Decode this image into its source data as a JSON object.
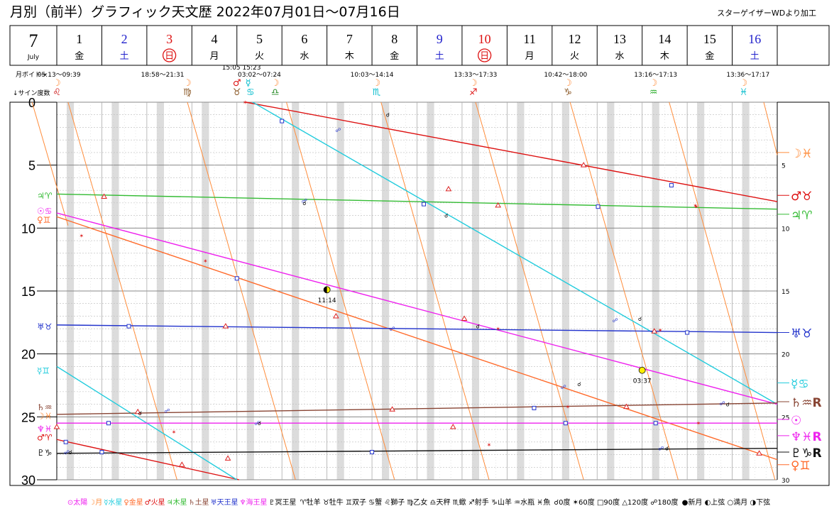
{
  "title": "月別（前半）グラフィック天文歴  2022年07月01日～07月16日",
  "credit": "スターゲイザーWDより加工",
  "month": {
    "number": "7",
    "name": "July"
  },
  "days": [
    {
      "d": "1",
      "w": "金",
      "c": "#000000",
      "circle": false
    },
    {
      "d": "2",
      "w": "土",
      "c": "#2222cc",
      "circle": false
    },
    {
      "d": "3",
      "w": "日",
      "c": "#dd1111",
      "circle": true
    },
    {
      "d": "4",
      "w": "月",
      "c": "#000000",
      "circle": false
    },
    {
      "d": "5",
      "w": "火",
      "c": "#000000",
      "circle": false
    },
    {
      "d": "6",
      "w": "水",
      "c": "#000000",
      "circle": false
    },
    {
      "d": "7",
      "w": "木",
      "c": "#000000",
      "circle": false
    },
    {
      "d": "8",
      "w": "金",
      "c": "#000000",
      "circle": false
    },
    {
      "d": "9",
      "w": "土",
      "c": "#2222cc",
      "circle": false
    },
    {
      "d": "10",
      "w": "日",
      "c": "#dd1111",
      "circle": true
    },
    {
      "d": "11",
      "w": "月",
      "c": "#000000",
      "circle": false
    },
    {
      "d": "12",
      "w": "火",
      "c": "#000000",
      "circle": false
    },
    {
      "d": "13",
      "w": "水",
      "c": "#000000",
      "circle": false
    },
    {
      "d": "14",
      "w": "木",
      "c": "#000000",
      "circle": false
    },
    {
      "d": "15",
      "w": "金",
      "c": "#000000",
      "circle": false
    },
    {
      "d": "16",
      "w": "土",
      "c": "#2222cc",
      "circle": false
    }
  ],
  "void_label": "月ボイド→",
  "sign_degree_label": "↓サイン度数",
  "voids": [
    {
      "text": "05:13～09:39",
      "day": 1.05
    },
    {
      "text": "18:58～21:31",
      "day": 3.35
    },
    {
      "text": "15:05  15:23",
      "day": 5.1,
      "row": 0
    },
    {
      "text": "03:02～07:24",
      "day": 5.5
    },
    {
      "text": "10:03～14:14",
      "day": 8.0
    },
    {
      "text": "13:33～17:33",
      "day": 10.3
    },
    {
      "text": "10:42～18:00",
      "day": 12.3
    },
    {
      "text": "13:16～17:13",
      "day": 14.3
    },
    {
      "text": "13:36～17:17",
      "day": 16.35
    }
  ],
  "ingress_glyphs": [
    {
      "g": "☽",
      "day": 1.0,
      "c": "#ff8c3a"
    },
    {
      "g": "♌",
      "day": 1.0,
      "c": "#cc1111",
      "row": 1
    },
    {
      "g": "☽",
      "day": 3.9,
      "c": "#ff8c3a"
    },
    {
      "g": "♍",
      "day": 3.9,
      "c": "#885522",
      "row": 1
    },
    {
      "g": "♂",
      "day": 5.0,
      "c": "#dd1111"
    },
    {
      "g": "☿",
      "day": 5.25,
      "c": "#00bbcc"
    },
    {
      "g": "♉",
      "day": 5.0,
      "c": "#885522",
      "row": 1
    },
    {
      "g": "♋",
      "day": 5.3,
      "c": "#00bbcc",
      "row": 1
    },
    {
      "g": "☽",
      "day": 5.85,
      "c": "#ff8c3a"
    },
    {
      "g": "♎",
      "day": 5.85,
      "c": "#228822",
      "row": 1
    },
    {
      "g": "☽",
      "day": 8.1,
      "c": "#ff8c3a"
    },
    {
      "g": "♏",
      "day": 8.1,
      "c": "#00bbcc",
      "row": 1
    },
    {
      "g": "☽",
      "day": 10.25,
      "c": "#ff8c3a"
    },
    {
      "g": "♐",
      "day": 10.25,
      "c": "#dd1111",
      "row": 1
    },
    {
      "g": "☽",
      "day": 12.35,
      "c": "#ff8c3a"
    },
    {
      "g": "♑",
      "day": 12.35,
      "c": "#885522",
      "row": 1
    },
    {
      "g": "☽",
      "day": 14.25,
      "c": "#ff8c3a"
    },
    {
      "g": "♒",
      "day": 14.25,
      "c": "#22aa22",
      "row": 1
    },
    {
      "g": "☽",
      "day": 16.25,
      "c": "#ff8c3a"
    },
    {
      "g": "♓",
      "day": 16.25,
      "c": "#00bbcc",
      "row": 1
    }
  ],
  "chart_data": {
    "type": "line",
    "x_axis": {
      "range": [
        1,
        17
      ],
      "unit": "day of July 2022"
    },
    "y_axis": {
      "range": [
        0,
        30
      ],
      "unit": "degree within sign",
      "ticks": [
        "0",
        "5",
        "10",
        "15",
        "20",
        "25",
        "30"
      ]
    },
    "series": [
      {
        "name": "☽",
        "color": "#ff8c3a",
        "lines": [
          [
            [
              1.25,
              0
            ],
            [
              3.67,
              30
            ]
          ],
          [
            [
              0.45,
              0
            ],
            [
              1.25,
              9.8
            ]
          ],
          [
            [
              3.9,
              0
            ],
            [
              6.3,
              30
            ]
          ],
          [
            [
              6.1,
              0
            ],
            [
              8.5,
              30
            ]
          ],
          [
            [
              8.2,
              0
            ],
            [
              10.6,
              30
            ]
          ],
          [
            [
              10.3,
              0
            ],
            [
              12.7,
              30
            ]
          ],
          [
            [
              12.4,
              0
            ],
            [
              14.8,
              30
            ]
          ],
          [
            [
              14.6,
              0
            ],
            [
              16.95,
              30
            ]
          ],
          [
            [
              16.7,
              0
            ],
            [
              17.0,
              4.2
            ]
          ]
        ]
      },
      {
        "name": "♂ ♉",
        "color": "#dd1111",
        "lines": [
          [
            [
              5.2,
              0
            ],
            [
              17.0,
              7.9
            ]
          ],
          [
            [
              1.0,
              26.8
            ],
            [
              5.05,
              30
            ]
          ]
        ]
      },
      {
        "name": "☿ ♋",
        "color": "#22ccdd",
        "lines": [
          [
            [
              5.35,
              0
            ],
            [
              17.0,
              24.0
            ]
          ],
          [
            [
              1.0,
              21.0
            ],
            [
              5.0,
              30
            ]
          ]
        ]
      },
      {
        "name": "♀ ♊",
        "color": "#ff6a2a",
        "lines": [
          [
            [
              1.0,
              9.1
            ],
            [
              17.0,
              28.4
            ]
          ]
        ]
      },
      {
        "name": "☉ ♋",
        "color": "#ee22ee",
        "lines": [
          [
            [
              1.0,
              8.8
            ],
            [
              17.0,
              24.0
            ]
          ]
        ]
      },
      {
        "name": "♃ ♈",
        "color": "#33bb33",
        "lines": [
          [
            [
              1.0,
              7.3
            ],
            [
              17.0,
              8.5
            ]
          ]
        ]
      },
      {
        "name": "♅ ♉",
        "color": "#2233cc",
        "lines": [
          [
            [
              1.0,
              17.7
            ],
            [
              17.0,
              18.3
            ]
          ]
        ]
      },
      {
        "name": "♄ ♒",
        "color": "#884433",
        "lines": [
          [
            [
              1.0,
              24.8
            ],
            [
              17.0,
              23.9
            ]
          ]
        ]
      },
      {
        "name": "♆ ♓",
        "color": "#ee22ee",
        "lines": [
          [
            [
              1.0,
              25.5
            ],
            [
              17.0,
              25.5
            ]
          ]
        ]
      },
      {
        "name": "♇ ♑",
        "color": "#111111",
        "lines": [
          [
            [
              1.0,
              27.9
            ],
            [
              17.0,
              27.5
            ]
          ]
        ]
      }
    ],
    "aspects": [
      {
        "t": "opp",
        "day": 7.25,
        "deg": 2.2
      },
      {
        "t": "opp",
        "day": 6.5,
        "deg": 7.8
      },
      {
        "t": "opp",
        "day": 3.45,
        "deg": 24.5
      },
      {
        "t": "opp",
        "day": 5.45,
        "deg": 25.5
      },
      {
        "t": "opp",
        "day": 1.22,
        "deg": 27.8
      },
      {
        "t": "opp",
        "day": 13.4,
        "deg": 17.3
      },
      {
        "t": "opp",
        "day": 8.45,
        "deg": 18.0
      },
      {
        "t": "opp",
        "day": 12.25,
        "deg": 22.6
      },
      {
        "t": "opp",
        "day": 15.78,
        "deg": 23.9
      },
      {
        "t": "opp",
        "day": 14.42,
        "deg": 27.5
      },
      {
        "t": "sq",
        "day": 6.0,
        "deg": 1.5
      },
      {
        "t": "sq",
        "day": 9.15,
        "deg": 8.1
      },
      {
        "t": "sq",
        "day": 14.65,
        "deg": 6.6
      },
      {
        "t": "sq",
        "day": 13.02,
        "deg": 8.3
      },
      {
        "t": "sq",
        "day": 5.0,
        "deg": 14.0
      },
      {
        "t": "sq",
        "day": 2.6,
        "deg": 17.8
      },
      {
        "t": "sq",
        "day": 15.0,
        "deg": 18.3
      },
      {
        "t": "sq",
        "day": 1.2,
        "deg": 27.0
      },
      {
        "t": "sq",
        "day": 2.15,
        "deg": 25.5
      },
      {
        "t": "sq",
        "day": 2.0,
        "deg": 27.8
      },
      {
        "t": "sq",
        "day": 8.0,
        "deg": 27.8
      },
      {
        "t": "sq",
        "day": 14.3,
        "deg": 25.5
      },
      {
        "t": "sq",
        "day": 11.6,
        "deg": 24.3
      },
      {
        "t": "sq",
        "day": 12.3,
        "deg": 25.5
      },
      {
        "t": "tri",
        "day": 2.05,
        "deg": 7.5
      },
      {
        "t": "tri",
        "day": 9.7,
        "deg": 6.9
      },
      {
        "t": "tri",
        "day": 12.7,
        "deg": 5.0
      },
      {
        "t": "tri",
        "day": 10.8,
        "deg": 8.2
      },
      {
        "t": "tri",
        "day": 7.2,
        "deg": 17.0
      },
      {
        "t": "tri",
        "day": 4.75,
        "deg": 17.8
      },
      {
        "t": "tri",
        "day": 8.45,
        "deg": 24.4
      },
      {
        "t": "tri",
        "day": 10.05,
        "deg": 17.2
      },
      {
        "t": "tri",
        "day": 14.27,
        "deg": 18.2
      },
      {
        "t": "tri",
        "day": 2.8,
        "deg": 24.6
      },
      {
        "t": "tri",
        "day": 13.65,
        "deg": 24.2
      },
      {
        "t": "tri",
        "day": 4.8,
        "deg": 28.3
      },
      {
        "t": "tri",
        "day": 9.8,
        "deg": 25.8
      },
      {
        "t": "tri",
        "day": 3.78,
        "deg": 28.8
      },
      {
        "t": "tri",
        "day": 16.6,
        "deg": 27.9
      },
      {
        "t": "tri",
        "day": 1.0,
        "deg": 25.8
      },
      {
        "t": "sx",
        "day": 5.18,
        "deg": 0
      },
      {
        "t": "sx",
        "day": 1.55,
        "deg": 10.6
      },
      {
        "t": "sx",
        "day": 4.3,
        "deg": 12.6
      },
      {
        "t": "sx",
        "day": 15.2,
        "deg": 8.3
      },
      {
        "t": "sx",
        "day": 10.8,
        "deg": 18.0
      },
      {
        "t": "sx",
        "day": 14.4,
        "deg": 18.1
      },
      {
        "t": "sx",
        "day": 3.6,
        "deg": 26.2
      },
      {
        "t": "sx",
        "day": 10.6,
        "deg": 27.2
      },
      {
        "t": "sx",
        "day": 12.35,
        "deg": 24.2
      },
      {
        "t": "sx",
        "day": 15.18,
        "deg": 8.2
      },
      {
        "t": "sx",
        "day": 15.25,
        "deg": 25.5
      },
      {
        "t": "cj",
        "day": 9.65,
        "deg": 9.0
      },
      {
        "t": "cj",
        "day": 8.35,
        "deg": 1.0
      },
      {
        "t": "cj",
        "day": 6.5,
        "deg": 8.0
      },
      {
        "t": "cj",
        "day": 2.85,
        "deg": 24.7
      },
      {
        "t": "cj",
        "day": 5.5,
        "deg": 25.5
      },
      {
        "t": "cj",
        "day": 1.3,
        "deg": 27.8
      },
      {
        "t": "cj",
        "day": 10.35,
        "deg": 17.8
      },
      {
        "t": "cj",
        "day": 13.95,
        "deg": 17.2
      },
      {
        "t": "cj",
        "day": 12.6,
        "deg": 22.4
      },
      {
        "t": "cj",
        "day": 15.9,
        "deg": 24.0
      },
      {
        "t": "cj",
        "day": 14.55,
        "deg": 27.5
      }
    ],
    "moon_phases": [
      {
        "type": "first",
        "day": 7.0,
        "deg": 14.9,
        "label": "11:14"
      },
      {
        "type": "full",
        "day": 14.0,
        "deg": 21.3,
        "label": "03:37"
      }
    ],
    "left_labels": [
      {
        "deg": 7.4,
        "text": "♃♈",
        "c": "#33bb33"
      },
      {
        "deg": 8.6,
        "text": "☉♋",
        "c": "#ee22ee"
      },
      {
        "deg": 9.3,
        "text": "♀♊",
        "c": "#ff6a2a"
      },
      {
        "deg": 17.8,
        "text": "♅♉",
        "c": "#2233cc"
      },
      {
        "deg": 21.3,
        "text": "☿♊",
        "c": "#22ccdd"
      },
      {
        "deg": 24.2,
        "text": "♄♒",
        "c": "#884433"
      },
      {
        "deg": 24.9,
        "text": "☽♓",
        "c": "#ff8c3a"
      },
      {
        "deg": 25.9,
        "text": "♆♓",
        "c": "#ee22ee"
      },
      {
        "deg": 26.6,
        "text": "♂♈",
        "c": "#dd1111"
      },
      {
        "deg": 27.8,
        "text": "♇♑",
        "c": "#111111"
      }
    ],
    "right_labels": [
      {
        "deg": 4.0,
        "text": "☽♓",
        "c": "#ff8c3a"
      },
      {
        "deg": 7.4,
        "text": "♂♉",
        "c": "#dd1111"
      },
      {
        "deg": 8.9,
        "text": "♃♈",
        "c": "#33bb33"
      },
      {
        "deg": 18.3,
        "text": "♅♉",
        "c": "#2233cc"
      },
      {
        "deg": 22.3,
        "text": "☿♋",
        "c": "#22ccdd"
      },
      {
        "deg": 23.8,
        "text": "♄♒R",
        "c": "#884433"
      },
      {
        "deg": 25.2,
        "text": "☉",
        "c": "#ee22ee"
      },
      {
        "deg": 26.5,
        "text": "♆♓R",
        "c": "#ee22ee"
      },
      {
        "deg": 27.8,
        "text": "♇♑R",
        "c": "#111111"
      },
      {
        "deg": 28.8,
        "text": "♀♊",
        "c": "#ff6a2a"
      }
    ]
  },
  "legend": [
    {
      "t": "⊙太陽",
      "c": "#ee22ee"
    },
    {
      "t": "☽月",
      "c": "#ff8c3a"
    },
    {
      "t": "☿水星",
      "c": "#22ccdd"
    },
    {
      "t": "♀金星",
      "c": "#ff6a2a"
    },
    {
      "t": "♂火星",
      "c": "#dd1111"
    },
    {
      "t": "♃木星",
      "c": "#33bb33"
    },
    {
      "t": "♄土星",
      "c": "#884433"
    },
    {
      "t": "♅天王星",
      "c": "#2233cc"
    },
    {
      "t": "♆海王星",
      "c": "#ee22ee"
    },
    {
      "t": "♇冥王星",
      "c": "#111111"
    },
    {
      "t": "    ♈牡羊 ♉牡牛 ♊双子 ♋蟹 ♌獅子 ♍乙女 ♎天秤 ♏蠍 ♐射手 ♑山羊 ♒水瓶 ♓魚",
      "c": "#000000"
    },
    {
      "t": "    ☌0度 ✶60度 □90度 △120度 ☍180度",
      "c": "#000000"
    },
    {
      "t": "    ●新月 ◐上弦 ○満月 ◑下弦",
      "c": "#000000"
    }
  ]
}
